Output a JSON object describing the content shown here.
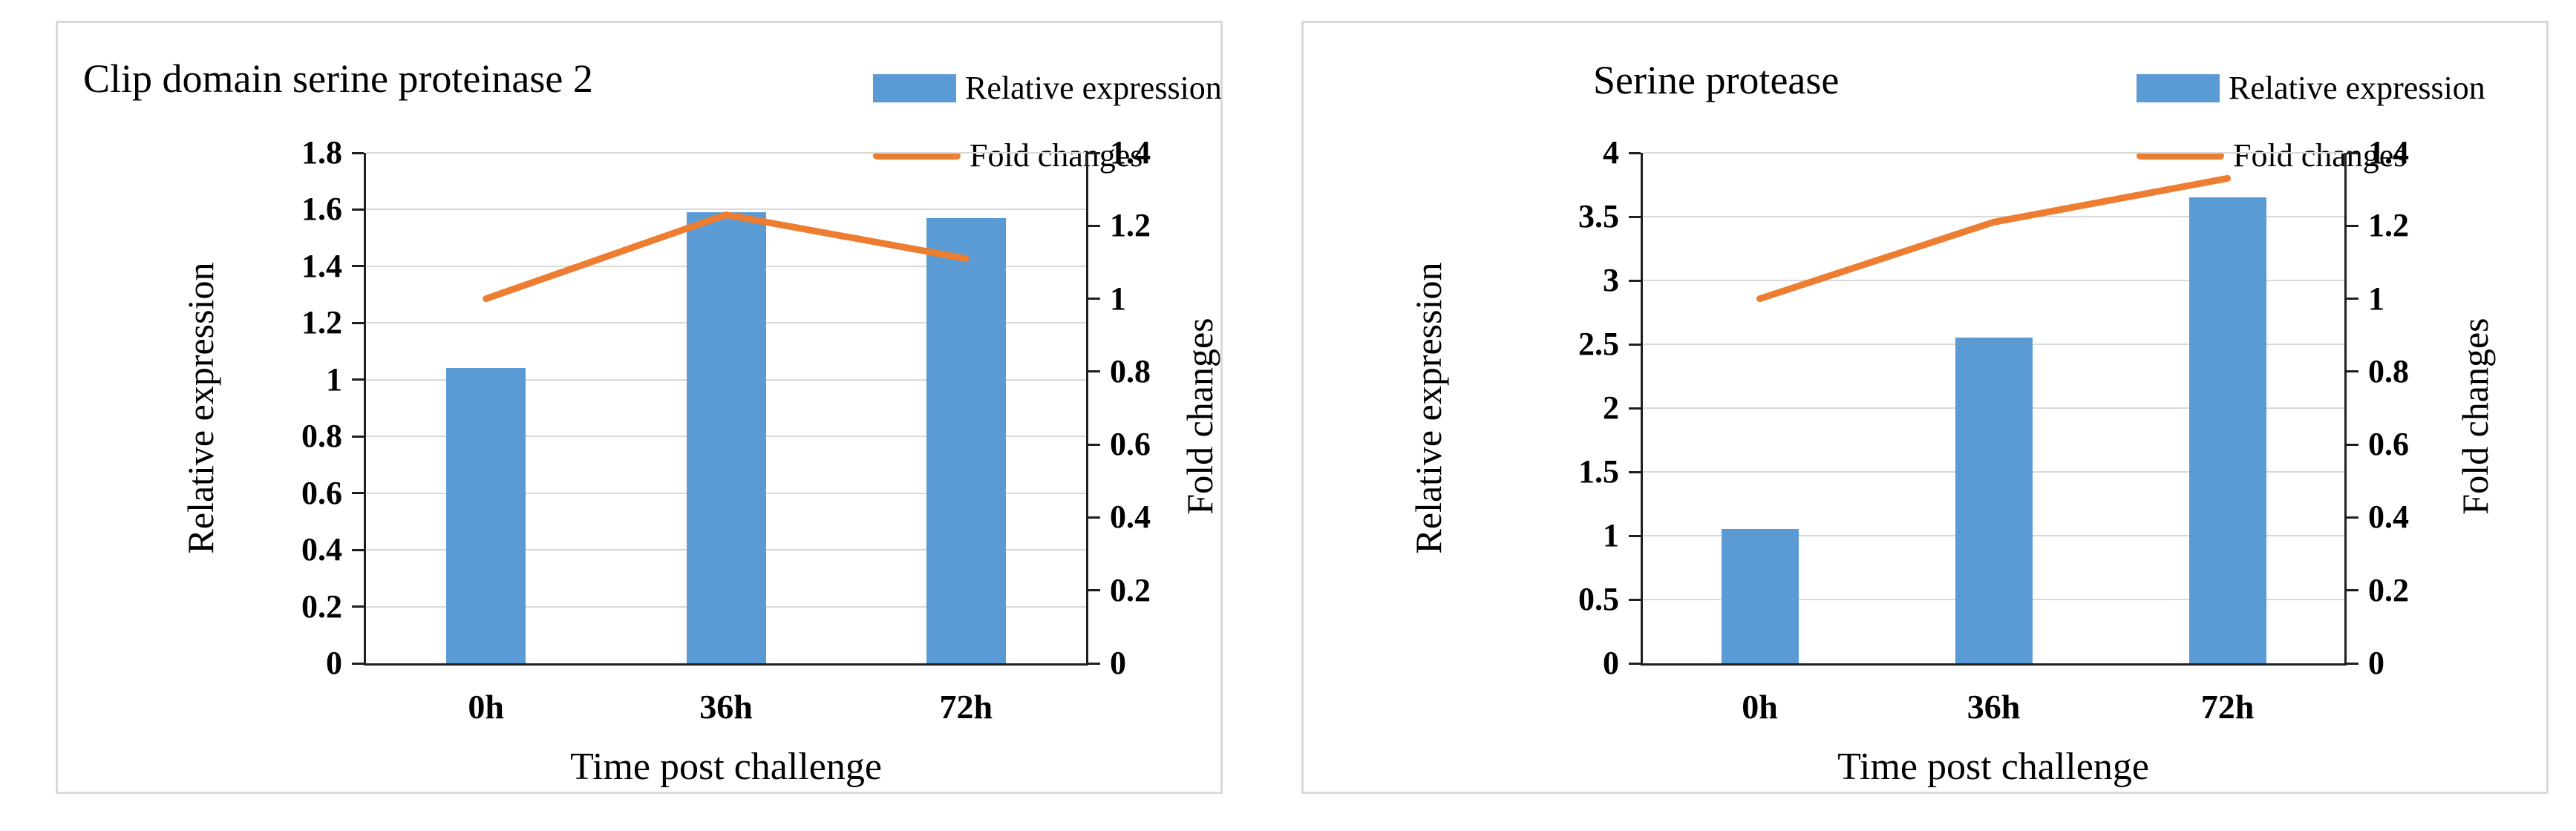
{
  "page": {
    "background": "#ffffff"
  },
  "colors": {
    "bar_fill": "#5B9BD5",
    "line_stroke": "#ED7D31",
    "gridline": "#D9D9D9",
    "axis": "#1F1F1F",
    "panel_border": "#D9D9D9",
    "text": "#000000"
  },
  "chart_data": [
    {
      "type": "bar+line",
      "title": "Clip domain serine proteinase 2",
      "xlabel": "Time post challenge",
      "ylabel_left": "Relative expression",
      "ylabel_right": "Fold changes",
      "categories": [
        "0h",
        "36h",
        "72h"
      ],
      "series": [
        {
          "name": "Relative expression",
          "type": "bar",
          "axis": "left",
          "values": [
            1.04,
            1.59,
            1.57
          ]
        },
        {
          "name": "Fold changes",
          "type": "line",
          "axis": "right",
          "values": [
            1.0,
            1.23,
            1.11
          ]
        }
      ],
      "y_left": {
        "min": 0,
        "max": 1.8,
        "ticks": [
          "0",
          "0.2",
          "0.4",
          "0.6",
          "0.8",
          "1",
          "1.2",
          "1.4",
          "1.6",
          "1.8"
        ]
      },
      "y_right": {
        "min": 0,
        "max": 1.4,
        "ticks": [
          "0",
          "0.2",
          "0.4",
          "0.6",
          "0.8",
          "1",
          "1.2",
          "1.4"
        ]
      },
      "grid": true,
      "legend_position": "top-right"
    },
    {
      "type": "bar+line",
      "title": "Serine protease",
      "xlabel": "Time post challenge",
      "ylabel_left": "Relative expression",
      "ylabel_right": "Fold changes",
      "categories": [
        "0h",
        "36h",
        "72h"
      ],
      "series": [
        {
          "name": "Relative expression",
          "type": "bar",
          "axis": "left",
          "values": [
            1.05,
            2.55,
            3.65
          ]
        },
        {
          "name": "Fold changes",
          "type": "line",
          "axis": "right",
          "values": [
            1.0,
            1.21,
            1.33
          ]
        }
      ],
      "y_left": {
        "min": 0,
        "max": 4,
        "ticks": [
          "0",
          "0.5",
          "1",
          "1.5",
          "2",
          "2.5",
          "3",
          "3.5",
          "4"
        ]
      },
      "y_right": {
        "min": 0,
        "max": 1.4,
        "ticks": [
          "0",
          "0.2",
          "0.4",
          "0.6",
          "0.8",
          "1",
          "1.2",
          "1.4"
        ]
      },
      "grid": true,
      "legend_position": "top-right"
    }
  ]
}
